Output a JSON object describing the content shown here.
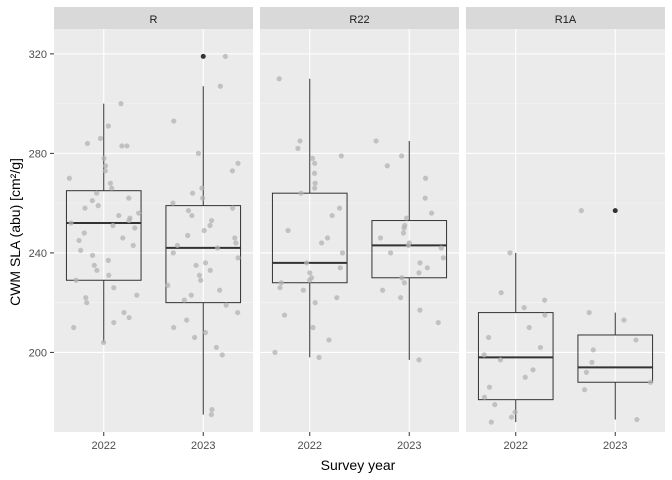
{
  "chart_data": {
    "type": "boxplot",
    "xlabel": "Survey year",
    "ylabel": "CWM SLA (abu) [cm²/g]",
    "ylim": [
      168,
      330
    ],
    "yticks": [
      200,
      240,
      280,
      320
    ],
    "grid": true,
    "legend": "none",
    "facets": [
      {
        "name": "R",
        "categories": [
          "2022",
          "2023"
        ],
        "boxes": [
          {
            "category": "2022",
            "whisker_low": 204,
            "q1": 229,
            "median": 252,
            "q3": 265,
            "whisker_high": 300,
            "outliers": []
          },
          {
            "category": "2023",
            "whisker_low": 175,
            "q1": 220,
            "median": 242,
            "q3": 259,
            "whisker_high": 307,
            "outliers": [
              319
            ]
          }
        ],
        "points": [
          [
            1,
            300
          ],
          [
            1,
            291
          ],
          [
            1,
            286
          ],
          [
            1,
            284
          ],
          [
            1,
            283
          ],
          [
            1,
            283
          ],
          [
            1,
            278
          ],
          [
            1,
            275
          ],
          [
            1,
            273
          ],
          [
            1,
            270
          ],
          [
            1,
            268
          ],
          [
            1,
            266
          ],
          [
            1,
            264
          ],
          [
            1,
            262
          ],
          [
            1,
            261
          ],
          [
            1,
            259
          ],
          [
            1,
            258
          ],
          [
            1,
            256
          ],
          [
            1,
            255
          ],
          [
            1,
            254
          ],
          [
            1,
            253
          ],
          [
            1,
            252
          ],
          [
            1,
            251
          ],
          [
            1,
            250
          ],
          [
            1,
            248
          ],
          [
            1,
            246
          ],
          [
            1,
            245
          ],
          [
            1,
            243
          ],
          [
            1,
            241
          ],
          [
            1,
            239
          ],
          [
            1,
            237
          ],
          [
            1,
            235
          ],
          [
            1,
            233
          ],
          [
            1,
            231
          ],
          [
            1,
            229
          ],
          [
            1,
            226
          ],
          [
            1,
            223
          ],
          [
            1,
            222
          ],
          [
            1,
            220
          ],
          [
            1,
            216
          ],
          [
            1,
            214
          ],
          [
            1,
            212
          ],
          [
            1,
            210
          ],
          [
            1,
            204
          ],
          [
            2,
            319
          ],
          [
            2,
            307
          ],
          [
            2,
            293
          ],
          [
            2,
            280
          ],
          [
            2,
            276
          ],
          [
            2,
            273
          ],
          [
            2,
            266
          ],
          [
            2,
            264
          ],
          [
            2,
            262
          ],
          [
            2,
            260
          ],
          [
            2,
            258
          ],
          [
            2,
            257
          ],
          [
            2,
            255
          ],
          [
            2,
            253
          ],
          [
            2,
            251
          ],
          [
            2,
            249
          ],
          [
            2,
            247
          ],
          [
            2,
            246
          ],
          [
            2,
            244
          ],
          [
            2,
            243
          ],
          [
            2,
            242
          ],
          [
            2,
            240
          ],
          [
            2,
            238
          ],
          [
            2,
            236
          ],
          [
            2,
            235
          ],
          [
            2,
            233
          ],
          [
            2,
            231
          ],
          [
            2,
            229
          ],
          [
            2,
            227
          ],
          [
            2,
            225
          ],
          [
            2,
            223
          ],
          [
            2,
            221
          ],
          [
            2,
            219
          ],
          [
            2,
            216
          ],
          [
            2,
            213
          ],
          [
            2,
            210
          ],
          [
            2,
            208
          ],
          [
            2,
            206
          ],
          [
            2,
            202
          ],
          [
            2,
            199
          ],
          [
            2,
            177
          ],
          [
            2,
            175
          ]
        ]
      },
      {
        "name": "R22",
        "categories": [
          "2022",
          "2023"
        ],
        "boxes": [
          {
            "category": "2022",
            "whisker_low": 198,
            "q1": 228,
            "median": 236,
            "q3": 264,
            "whisker_high": 310,
            "outliers": []
          },
          {
            "category": "2023",
            "whisker_low": 197,
            "q1": 230,
            "median": 243,
            "q3": 253,
            "whisker_high": 285,
            "outliers": []
          }
        ],
        "points": [
          [
            1,
            310
          ],
          [
            1,
            285
          ],
          [
            1,
            282
          ],
          [
            1,
            279
          ],
          [
            1,
            278
          ],
          [
            1,
            276
          ],
          [
            1,
            272
          ],
          [
            1,
            268
          ],
          [
            1,
            266
          ],
          [
            1,
            264
          ],
          [
            1,
            258
          ],
          [
            1,
            255
          ],
          [
            1,
            249
          ],
          [
            1,
            246
          ],
          [
            1,
            244
          ],
          [
            1,
            240
          ],
          [
            1,
            236
          ],
          [
            1,
            234
          ],
          [
            1,
            232
          ],
          [
            1,
            230
          ],
          [
            1,
            229
          ],
          [
            1,
            228
          ],
          [
            1,
            226
          ],
          [
            1,
            225
          ],
          [
            1,
            222
          ],
          [
            1,
            220
          ],
          [
            1,
            215
          ],
          [
            1,
            210
          ],
          [
            1,
            205
          ],
          [
            1,
            200
          ],
          [
            1,
            198
          ],
          [
            2,
            285
          ],
          [
            2,
            279
          ],
          [
            2,
            275
          ],
          [
            2,
            270
          ],
          [
            2,
            262
          ],
          [
            2,
            256
          ],
          [
            2,
            254
          ],
          [
            2,
            251
          ],
          [
            2,
            250
          ],
          [
            2,
            248
          ],
          [
            2,
            246
          ],
          [
            2,
            244
          ],
          [
            2,
            243
          ],
          [
            2,
            242
          ],
          [
            2,
            240
          ],
          [
            2,
            238
          ],
          [
            2,
            236
          ],
          [
            2,
            234
          ],
          [
            2,
            232
          ],
          [
            2,
            230
          ],
          [
            2,
            228
          ],
          [
            2,
            225
          ],
          [
            2,
            222
          ],
          [
            2,
            217
          ],
          [
            2,
            212
          ],
          [
            2,
            197
          ]
        ]
      },
      {
        "name": "R1A",
        "categories": [
          "2022",
          "2023"
        ],
        "boxes": [
          {
            "category": "2022",
            "whisker_low": 172,
            "q1": 181,
            "median": 198,
            "q3": 216,
            "whisker_high": 240,
            "outliers": []
          },
          {
            "category": "2023",
            "whisker_low": 173,
            "q1": 188,
            "median": 194,
            "q3": 207,
            "whisker_high": 216,
            "outliers": [
              257
            ]
          }
        ],
        "points": [
          [
            1,
            240
          ],
          [
            1,
            224
          ],
          [
            1,
            221
          ],
          [
            1,
            218
          ],
          [
            1,
            215
          ],
          [
            1,
            210
          ],
          [
            1,
            206
          ],
          [
            1,
            202
          ],
          [
            1,
            199
          ],
          [
            1,
            197
          ],
          [
            1,
            193
          ],
          [
            1,
            190
          ],
          [
            1,
            186
          ],
          [
            1,
            182
          ],
          [
            1,
            179
          ],
          [
            1,
            176
          ],
          [
            1,
            174
          ],
          [
            1,
            172
          ],
          [
            2,
            257
          ],
          [
            2,
            216
          ],
          [
            2,
            213
          ],
          [
            2,
            205
          ],
          [
            2,
            201
          ],
          [
            2,
            196
          ],
          [
            2,
            192
          ],
          [
            2,
            188
          ],
          [
            2,
            185
          ],
          [
            2,
            173
          ]
        ]
      }
    ]
  }
}
